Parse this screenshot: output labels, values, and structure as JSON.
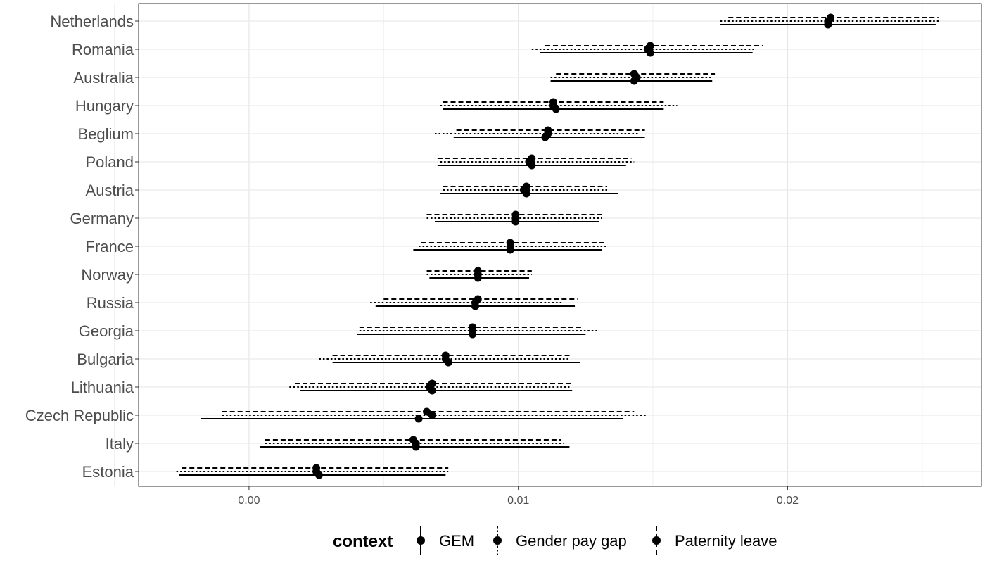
{
  "chart_data": {
    "type": "dot-interval",
    "xlim": [
      -0.0041,
      0.0272
    ],
    "x_ticks": [
      0.0,
      0.01,
      0.02
    ],
    "x_tick_labels": [
      "0.00",
      "0.01",
      "0.02"
    ],
    "grid": true,
    "legend": {
      "title": "context",
      "placement": "bottom",
      "entries": [
        "GEM",
        "Gender pay gap",
        "Paternity leave"
      ]
    },
    "categories": [
      "Netherlands",
      "Romania",
      "Australia",
      "Hungary",
      "Beglium",
      "Poland",
      "Austria",
      "Germany",
      "France",
      "Norway",
      "Russia",
      "Georgia",
      "Bulgaria",
      "Lithuania",
      "Czech Republic",
      "Italy",
      "Estonia"
    ],
    "series": [
      {
        "name": "GEM",
        "linetype": "solid",
        "estimate": [
          0.0215,
          0.0149,
          0.0143,
          0.0114,
          0.011,
          0.0105,
          0.0103,
          0.0099,
          0.0097,
          0.0085,
          0.0084,
          0.0083,
          0.0074,
          0.0068,
          0.0063,
          0.0062,
          0.0026
        ],
        "lower": [
          0.0175,
          0.0108,
          0.0112,
          0.0072,
          0.0076,
          0.007,
          0.0071,
          0.0069,
          0.0061,
          0.0067,
          0.0047,
          0.004,
          0.0031,
          0.0019,
          -0.0018,
          0.0004,
          -0.0026
        ],
        "upper": [
          0.0255,
          0.0187,
          0.0172,
          0.0154,
          0.0147,
          0.014,
          0.0137,
          0.013,
          0.0131,
          0.0104,
          0.0121,
          0.0125,
          0.0123,
          0.012,
          0.0139,
          0.0119,
          0.0073
        ]
      },
      {
        "name": "Gender pay gap",
        "linetype": "dotted",
        "estimate": [
          0.0215,
          0.0148,
          0.0144,
          0.0113,
          0.0111,
          0.0104,
          0.0102,
          0.0099,
          0.0097,
          0.0085,
          0.0084,
          0.0083,
          0.0073,
          0.0067,
          0.0068,
          0.0062,
          0.0025
        ],
        "lower": [
          0.0175,
          0.0105,
          0.0112,
          0.0071,
          0.0069,
          0.0071,
          0.0072,
          0.0066,
          0.0063,
          0.0066,
          0.0045,
          0.0041,
          0.0026,
          0.0015,
          -0.001,
          0.0006,
          -0.0027
        ],
        "upper": [
          0.0257,
          0.0188,
          0.0172,
          0.0159,
          0.0145,
          0.0143,
          0.0133,
          0.0131,
          0.0133,
          0.0105,
          0.0117,
          0.013,
          0.0119,
          0.0119,
          0.0148,
          0.0117,
          0.0074
        ]
      },
      {
        "name": "Paternity leave",
        "linetype": "dashed",
        "estimate": [
          0.0216,
          0.0149,
          0.0143,
          0.0113,
          0.0111,
          0.0105,
          0.0103,
          0.0099,
          0.0097,
          0.0085,
          0.0085,
          0.0083,
          0.0073,
          0.0068,
          0.0066,
          0.0061,
          0.0025
        ],
        "lower": [
          0.0178,
          0.011,
          0.0114,
          0.0072,
          0.0077,
          0.007,
          0.0072,
          0.0066,
          0.0064,
          0.0066,
          0.005,
          0.0041,
          0.0031,
          0.0017,
          -0.001,
          0.0006,
          -0.0025
        ],
        "upper": [
          0.0256,
          0.0191,
          0.0173,
          0.0154,
          0.0147,
          0.0142,
          0.0133,
          0.0131,
          0.0132,
          0.0105,
          0.0122,
          0.0124,
          0.012,
          0.012,
          0.0143,
          0.0116,
          0.0074
        ]
      }
    ]
  }
}
